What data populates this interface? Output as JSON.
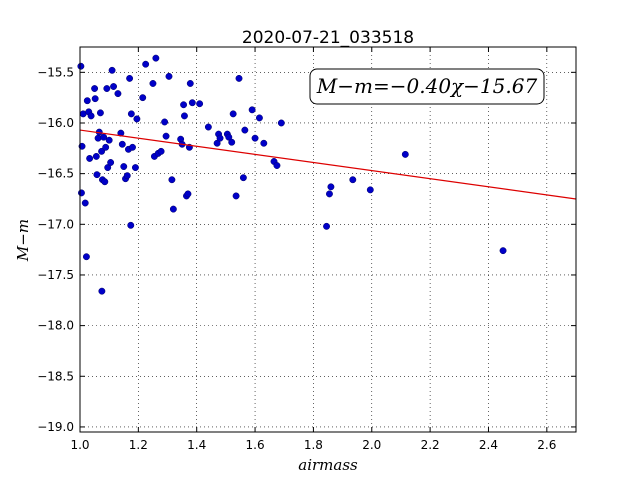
{
  "chart_data": {
    "type": "scatter",
    "title": "2020-07-21_033518",
    "xlabel": "airmass",
    "ylabel": "M−m",
    "xlim": [
      1.0,
      2.7
    ],
    "ylim": [
      -19.05,
      -15.25
    ],
    "x_ticks": [
      1.0,
      1.2,
      1.4,
      1.6,
      1.8,
      2.0,
      2.2,
      2.4,
      2.6
    ],
    "x_tick_labels": [
      "1.0",
      "1.2",
      "1.4",
      "1.6",
      "1.8",
      "2.0",
      "2.2",
      "2.4",
      "2.6"
    ],
    "y_ticks": [
      -15.5,
      -16.0,
      -16.5,
      -17.0,
      -17.5,
      -18.0,
      -18.5,
      -19.0
    ],
    "y_tick_labels": [
      "−15.5",
      "−16.0",
      "−16.5",
      "−17.0",
      "−17.5",
      "−18.0",
      "−18.5",
      "−19.0"
    ],
    "grid": true,
    "annotation": "M−m=−0.40χ−15.67",
    "fit": {
      "slope": -0.4,
      "intercept": -15.67,
      "color": "#dd0000"
    },
    "point_color": "#0000c8",
    "points": [
      [
        1.003,
        -15.44
      ],
      [
        1.007,
        -16.23
      ],
      [
        1.011,
        -15.91
      ],
      [
        1.018,
        -16.79
      ],
      [
        1.022,
        -17.32
      ],
      [
        1.025,
        -15.78
      ],
      [
        1.03,
        -15.89
      ],
      [
        1.033,
        -16.35
      ],
      [
        1.038,
        -15.93
      ],
      [
        1.05,
        -15.66
      ],
      [
        1.052,
        -15.76
      ],
      [
        1.056,
        -16.33
      ],
      [
        1.058,
        -16.51
      ],
      [
        1.062,
        -16.15
      ],
      [
        1.066,
        -16.09
      ],
      [
        1.07,
        -15.9
      ],
      [
        1.074,
        -16.28
      ],
      [
        1.077,
        -16.56
      ],
      [
        1.081,
        -16.14
      ],
      [
        1.085,
        -16.58
      ],
      [
        1.088,
        -16.24
      ],
      [
        1.092,
        -15.66
      ],
      [
        1.095,
        -16.44
      ],
      [
        1.1,
        -16.17
      ],
      [
        1.105,
        -16.39
      ],
      [
        1.11,
        -15.48
      ],
      [
        1.115,
        -15.64
      ],
      [
        1.13,
        -15.71
      ],
      [
        1.14,
        -16.1
      ],
      [
        1.145,
        -16.21
      ],
      [
        1.15,
        -16.43
      ],
      [
        1.156,
        -16.55
      ],
      [
        1.162,
        -16.52
      ],
      [
        1.166,
        -16.26
      ],
      [
        1.17,
        -15.56
      ],
      [
        1.174,
        -17.01
      ],
      [
        1.176,
        -15.91
      ],
      [
        1.18,
        -16.24
      ],
      [
        1.19,
        -16.44
      ],
      [
        1.195,
        -15.96
      ],
      [
        1.215,
        -15.75
      ],
      [
        1.225,
        -15.42
      ],
      [
        1.25,
        -15.61
      ],
      [
        1.255,
        -16.33
      ],
      [
        1.26,
        -15.36
      ],
      [
        1.268,
        -16.3
      ],
      [
        1.278,
        -16.28
      ],
      [
        1.29,
        -15.99
      ],
      [
        1.295,
        -16.13
      ],
      [
        1.305,
        -15.54
      ],
      [
        1.315,
        -16.56
      ],
      [
        1.32,
        -16.85
      ],
      [
        1.345,
        -16.16
      ],
      [
        1.35,
        -16.21
      ],
      [
        1.355,
        -15.82
      ],
      [
        1.358,
        -15.93
      ],
      [
        1.365,
        -16.72
      ],
      [
        1.37,
        -16.7
      ],
      [
        1.375,
        -16.24
      ],
      [
        1.378,
        -15.61
      ],
      [
        1.385,
        -15.8
      ],
      [
        1.41,
        -15.81
      ],
      [
        1.44,
        -16.04
      ],
      [
        1.47,
        -16.2
      ],
      [
        1.475,
        -16.11
      ],
      [
        1.48,
        -16.15
      ],
      [
        1.505,
        -16.11
      ],
      [
        1.51,
        -16.14
      ],
      [
        1.52,
        -16.19
      ],
      [
        1.525,
        -15.91
      ],
      [
        1.535,
        -16.72
      ],
      [
        1.545,
        -15.56
      ],
      [
        1.56,
        -16.54
      ],
      [
        1.565,
        -16.07
      ],
      [
        1.59,
        -15.87
      ],
      [
        1.6,
        -16.15
      ],
      [
        1.615,
        -15.95
      ],
      [
        1.63,
        -16.2
      ],
      [
        1.665,
        -16.38
      ],
      [
        1.675,
        -16.42
      ],
      [
        1.69,
        -16.0
      ],
      [
        1.005,
        -16.69
      ],
      [
        1.075,
        -17.66
      ],
      [
        1.845,
        -17.02
      ],
      [
        1.855,
        -16.7
      ],
      [
        1.86,
        -16.63
      ],
      [
        1.935,
        -16.56
      ],
      [
        1.995,
        -16.66
      ],
      [
        2.115,
        -16.31
      ],
      [
        2.45,
        -17.26
      ]
    ]
  }
}
